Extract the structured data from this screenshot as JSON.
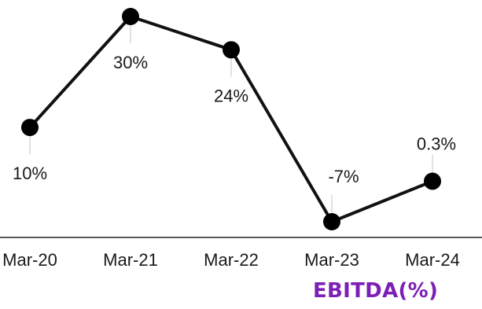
{
  "chart_data": {
    "type": "line",
    "categories": [
      "Mar-20",
      "Mar-21",
      "Mar-22",
      "Mar-23",
      "Mar-24"
    ],
    "series": [
      {
        "values": [
          10,
          30,
          24,
          -7,
          0.3
        ],
        "data_labels": [
          "10%",
          "30%",
          "24%",
          "-7%",
          "0.3%"
        ]
      }
    ],
    "caption": "EBITDA(%)",
    "ylim": [
      -7,
      30
    ],
    "grid": false,
    "legend": "none"
  },
  "colors": {
    "line": "#111111",
    "point": "#000000",
    "caption": "#7b1fb6",
    "axis": "#222222"
  }
}
